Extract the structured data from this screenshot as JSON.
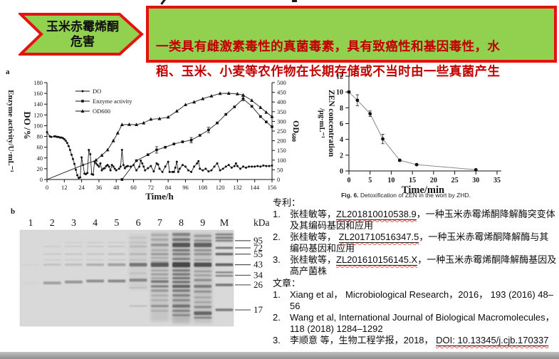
{
  "banner": {
    "arrow_text": "玉米赤霉烯酮\n危害",
    "box_text": "一类具有雌激素毒性的真菌毒素，具有致癌性和基因毒性，水\n稻、玉米、小麦等农作物在长期存储或不当时由一些真菌产生",
    "colors": {
      "fill": "#92d050",
      "border": "#e51212",
      "box_text": "#c00000"
    }
  },
  "chart_data": [
    {
      "id": "fermentation_profile",
      "type": "line",
      "panel_label": "a",
      "xlabel": "Time/h",
      "xlim": [
        0,
        156
      ],
      "x_ticks": [
        0,
        12,
        24,
        36,
        48,
        60,
        72,
        84,
        96,
        108,
        120,
        132,
        144,
        156
      ],
      "left_axis": {
        "labels": [
          "Enzyme activity/U·mL⁻¹",
          "DO /%"
        ],
        "lim": [
          0,
          180
        ],
        "ticks": [
          0,
          20,
          40,
          60,
          80,
          100,
          120,
          140,
          160,
          180
        ]
      },
      "right_axis": {
        "label": "OD",
        "label_sub": "600",
        "lim": [
          0,
          500
        ],
        "ticks": [
          0,
          50,
          100,
          150,
          200,
          250,
          300,
          350,
          400,
          450,
          500
        ]
      },
      "legend": [
        "DO",
        "Enzyme activity",
        "OD600"
      ],
      "series": [
        {
          "name": "DO",
          "axis": "left",
          "marker": "circle",
          "points": [
            [
              0,
              88
            ],
            [
              2,
              80
            ],
            [
              3,
              79
            ],
            [
              5,
              80
            ],
            [
              6,
              80
            ],
            [
              7,
              79
            ],
            [
              8,
              79
            ],
            [
              9,
              78
            ],
            [
              10,
              78
            ],
            [
              11,
              77
            ],
            [
              12,
              75
            ],
            [
              13,
              72
            ],
            [
              14,
              68
            ],
            [
              15,
              62
            ],
            [
              16,
              55
            ],
            [
              17,
              46
            ],
            [
              18,
              38
            ],
            [
              19,
              29
            ],
            [
              20,
              18
            ],
            [
              21,
              8
            ],
            [
              22,
              3
            ],
            [
              23,
              4
            ],
            [
              24,
              41
            ],
            [
              25,
              27
            ],
            [
              26,
              11
            ],
            [
              27,
              10
            ],
            [
              28,
              12
            ],
            [
              29,
              55
            ],
            [
              30,
              47
            ],
            [
              31,
              10
            ],
            [
              32,
              9
            ],
            [
              33,
              33
            ],
            [
              34,
              30
            ],
            [
              35,
              27
            ],
            [
              36,
              24
            ],
            [
              37,
              30
            ],
            [
              38,
              17
            ],
            [
              39,
              20
            ],
            [
              40,
              21
            ],
            [
              41,
              25
            ],
            [
              42,
              27
            ],
            [
              43,
              24
            ],
            [
              44,
              17
            ],
            [
              45,
              27
            ],
            [
              46,
              24
            ],
            [
              47,
              20
            ],
            [
              48,
              17
            ],
            [
              50,
              20
            ],
            [
              51,
              24
            ],
            [
              52,
              55
            ],
            [
              53,
              27
            ],
            [
              54,
              21
            ],
            [
              55,
              24
            ],
            [
              56,
              25
            ],
            [
              58,
              24
            ],
            [
              60,
              27
            ],
            [
              62,
              17
            ],
            [
              64,
              24
            ],
            [
              65,
              35
            ],
            [
              66,
              30
            ],
            [
              67,
              24
            ],
            [
              68,
              17
            ],
            [
              70,
              21
            ],
            [
              72,
              25
            ],
            [
              74,
              15
            ],
            [
              76,
              30
            ],
            [
              77,
              28
            ],
            [
              78,
              20
            ],
            [
              80,
              14
            ],
            [
              82,
              24
            ],
            [
              84,
              33
            ],
            [
              85,
              14
            ],
            [
              87,
              14
            ],
            [
              88,
              14
            ],
            [
              89,
              22
            ],
            [
              90,
              33
            ],
            [
              91,
              14
            ],
            [
              92,
              20
            ],
            [
              94,
              27
            ],
            [
              96,
              24
            ],
            [
              98,
              17
            ],
            [
              100,
              14
            ],
            [
              102,
              24
            ],
            [
              104,
              30
            ],
            [
              105,
              34
            ],
            [
              106,
              20
            ],
            [
              108,
              17
            ],
            [
              110,
              20
            ],
            [
              112,
              15
            ],
            [
              114,
              17
            ],
            [
              116,
              24
            ],
            [
              118,
              30
            ],
            [
              120,
              17
            ],
            [
              122,
              20
            ],
            [
              124,
              24
            ],
            [
              126,
              27
            ],
            [
              128,
              22
            ],
            [
              130,
              25
            ],
            [
              131,
              30
            ],
            [
              132,
              25
            ],
            [
              134,
              20
            ],
            [
              136,
              24
            ],
            [
              138,
              22
            ],
            [
              140,
              24
            ],
            [
              142,
              24
            ],
            [
              144,
              24
            ],
            [
              146,
              25
            ],
            [
              148,
              24
            ],
            [
              150,
              26
            ],
            [
              152,
              25
            ],
            [
              154,
              25
            ],
            [
              156,
              26
            ]
          ]
        },
        {
          "name": "Enzyme activity",
          "axis": "left",
          "marker": "square",
          "points": [
            [
              52,
              0
            ],
            [
              62,
              35
            ],
            [
              70,
              46
            ],
            [
              76,
              55,
              6
            ],
            [
              82,
              60
            ],
            [
              88,
              66
            ],
            [
              94,
              70
            ],
            [
              100,
              73,
              5
            ],
            [
              106,
              82
            ],
            [
              112,
              92,
              5
            ],
            [
              118,
              105
            ],
            [
              124,
              121
            ],
            [
              130,
              135
            ],
            [
              136,
              150,
              4
            ],
            [
              142,
              136
            ],
            [
              148,
              117
            ],
            [
              152,
              107
            ],
            [
              156,
              98
            ]
          ]
        },
        {
          "name": "OD600",
          "axis": "right",
          "marker": "triangle",
          "marker_from": 34,
          "points": [
            [
              0,
              0
            ],
            [
              6,
              18
            ],
            [
              12,
              36
            ],
            [
              18,
              54
            ],
            [
              24,
              72
            ],
            [
              30,
              88
            ],
            [
              34,
              100
            ],
            [
              38,
              125
            ],
            [
              42,
              153
            ],
            [
              46,
              200
            ],
            [
              49,
              240
            ],
            [
              52,
              283
            ],
            [
              57,
              284
            ],
            [
              62,
              283
            ],
            [
              67,
              292
            ],
            [
              72,
              311
            ],
            [
              78,
              314
            ],
            [
              84,
              322
            ],
            [
              90,
              353
            ],
            [
              96,
              386
            ],
            [
              102,
              400
            ],
            [
              108,
              417
            ],
            [
              114,
              431
            ],
            [
              120,
              444
            ],
            [
              126,
              445
            ],
            [
              132,
              442
            ],
            [
              136,
              436
            ],
            [
              142,
              408
            ],
            [
              148,
              372
            ],
            [
              152,
              347
            ],
            [
              156,
              325
            ]
          ]
        }
      ]
    },
    {
      "id": "zen_detoxification",
      "type": "line",
      "ylabel_line1": "ZEN concentration",
      "ylabel_line2": "/μg·mL⁻¹",
      "xlabel": "Time/min",
      "xlim": [
        0,
        35
      ],
      "ylim": [
        0,
        12
      ],
      "x_ticks": [
        0,
        5,
        10,
        15,
        20,
        25,
        30,
        35
      ],
      "y_ticks": [
        0,
        2,
        4,
        6,
        8,
        10,
        12
      ],
      "points": [
        [
          0,
          10,
          0.15
        ],
        [
          2,
          8.95,
          0.7
        ],
        [
          5,
          7.25,
          0.35
        ],
        [
          8,
          4.05,
          0.6
        ],
        [
          12,
          1.35,
          0.12
        ],
        [
          16,
          0.8,
          0.1
        ],
        [
          30,
          0.15,
          0.05
        ]
      ],
      "caption_bold": "Fig. 6.",
      "caption_rest": "  Detoxification of ZEN in the wort by ZHD."
    }
  ],
  "gel": {
    "panel_label": "b",
    "unit_label": "kDa",
    "lane_labels": [
      "1",
      "2",
      "3",
      "4",
      "5",
      "6",
      "7",
      "8",
      "9",
      "M"
    ],
    "marker_labels": [
      "95",
      "72",
      "55",
      "43",
      "34",
      "26",
      "17"
    ]
  },
  "refs": {
    "patents_header": "专利：",
    "articles_header": "文章：",
    "patents": [
      {
        "num": "1.",
        "pre": "张桂敏等，",
        "link": "ZL201810010538.9",
        "post": "，一种玉米赤霉烯酮降解酶突变体及其编码基因和应用"
      },
      {
        "num": "2.",
        "pre": "张桂敏等， ",
        "link": "ZL201710516347.5",
        "post": "，一种玉米赤霉烯酮降解酶与其编码基因和应用"
      },
      {
        "num": "3.",
        "pre": "张桂敏等，",
        "link": "ZL201610156145.X",
        "post": "，一种玉米赤霉烯酮降解酶基因及高产菌株"
      }
    ],
    "articles": [
      {
        "num": "1.",
        "pre": "Xiang et al， Microbiological Research，2016， 193 (2016) 48–56",
        "link": "",
        "post": ""
      },
      {
        "num": "2.",
        "pre": "Wang et al, International Journal of Biological Macromolecules，118 (2018) 1284–1292",
        "link": "",
        "post": ""
      },
      {
        "num": "3.",
        "pre": "李顺意 等，生物工程学报，2018， ",
        "link": "DOI: 10.13345/j.cjb.170337",
        "post": ""
      }
    ]
  }
}
